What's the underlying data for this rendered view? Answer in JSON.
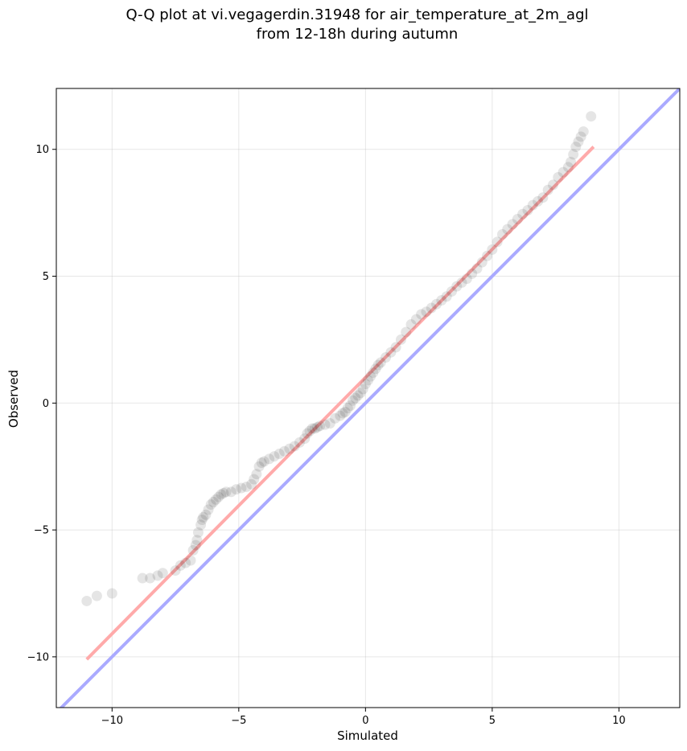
{
  "chart_data": {
    "type": "scatter",
    "title_line1": "Q-Q plot at vi.vegagerdin.31948 for air_temperature_at_2m_agl",
    "title_line2": "from 12-18h during autumn",
    "xlabel": "Simulated",
    "ylabel": "Observed",
    "xlim": [
      -12.2,
      12.4
    ],
    "ylim": [
      -12.0,
      12.4
    ],
    "x_ticks": [
      -10,
      -5,
      0,
      5,
      10
    ],
    "y_ticks": [
      -10,
      -5,
      0,
      5,
      10
    ],
    "x_tick_labels": [
      "−10",
      "−5",
      "0",
      "5",
      "10"
    ],
    "y_tick_labels": [
      "−10",
      "−5",
      "0",
      "5",
      "10"
    ],
    "grid": true,
    "reference_line": {
      "slope": 1,
      "intercept": 0,
      "color": "#aaaaff"
    },
    "fit_line": {
      "x": [
        -11.0,
        9.0
      ],
      "y": [
        -10.1,
        10.1
      ],
      "color": "#ffaaaa"
    },
    "points": {
      "color": "#000000",
      "x": [
        -11.0,
        -10.6,
        -10.0,
        -8.8,
        -8.5,
        -8.2,
        -8.0,
        -7.5,
        -7.3,
        -7.1,
        -6.9,
        -6.8,
        -6.7,
        -6.65,
        -6.6,
        -6.5,
        -6.45,
        -6.4,
        -6.3,
        -6.2,
        -6.1,
        -6.0,
        -5.9,
        -5.8,
        -5.7,
        -5.6,
        -5.5,
        -5.3,
        -5.1,
        -4.9,
        -4.7,
        -4.5,
        -4.4,
        -4.3,
        -4.2,
        -4.1,
        -4.0,
        -3.8,
        -3.6,
        -3.4,
        -3.2,
        -3.0,
        -2.8,
        -2.6,
        -2.4,
        -2.3,
        -2.2,
        -2.1,
        -2.0,
        -1.9,
        -1.8,
        -1.6,
        -1.4,
        -1.2,
        -1.0,
        -0.9,
        -0.8,
        -0.7,
        -0.6,
        -0.5,
        -0.4,
        -0.3,
        -0.2,
        -0.1,
        0.0,
        0.1,
        0.2,
        0.3,
        0.4,
        0.5,
        0.6,
        0.8,
        1.0,
        1.2,
        1.4,
        1.6,
        1.8,
        2.0,
        2.2,
        2.4,
        2.6,
        2.8,
        3.0,
        3.2,
        3.4,
        3.6,
        3.8,
        4.0,
        4.2,
        4.4,
        4.6,
        4.8,
        5.0,
        5.2,
        5.4,
        5.6,
        5.8,
        6.0,
        6.2,
        6.4,
        6.6,
        6.8,
        7.0,
        7.2,
        7.4,
        7.6,
        7.8,
        8.0,
        8.1,
        8.2,
        8.3,
        8.4,
        8.5,
        8.6,
        8.9
      ],
      "y": [
        -7.8,
        -7.6,
        -7.5,
        -6.9,
        -6.9,
        -6.8,
        -6.7,
        -6.6,
        -6.4,
        -6.3,
        -6.2,
        -5.8,
        -5.6,
        -5.4,
        -5.1,
        -4.8,
        -4.6,
        -4.5,
        -4.4,
        -4.2,
        -4.0,
        -3.9,
        -3.8,
        -3.7,
        -3.6,
        -3.55,
        -3.5,
        -3.5,
        -3.4,
        -3.35,
        -3.3,
        -3.2,
        -3.0,
        -2.8,
        -2.5,
        -2.35,
        -2.3,
        -2.2,
        -2.1,
        -2.0,
        -1.9,
        -1.8,
        -1.7,
        -1.55,
        -1.4,
        -1.2,
        -1.1,
        -1.0,
        -1.0,
        -0.95,
        -0.9,
        -0.85,
        -0.8,
        -0.6,
        -0.5,
        -0.4,
        -0.35,
        -0.2,
        -0.1,
        0.1,
        0.2,
        0.3,
        0.4,
        0.55,
        0.75,
        0.9,
        1.05,
        1.2,
        1.35,
        1.5,
        1.6,
        1.8,
        2.0,
        2.2,
        2.5,
        2.8,
        3.1,
        3.3,
        3.5,
        3.6,
        3.75,
        3.9,
        4.05,
        4.2,
        4.4,
        4.6,
        4.75,
        4.9,
        5.1,
        5.3,
        5.55,
        5.8,
        6.05,
        6.35,
        6.65,
        6.85,
        7.05,
        7.25,
        7.45,
        7.6,
        7.8,
        7.95,
        8.1,
        8.4,
        8.6,
        8.9,
        9.1,
        9.3,
        9.5,
        9.8,
        10.1,
        10.3,
        10.5,
        10.7,
        11.3
      ]
    }
  }
}
